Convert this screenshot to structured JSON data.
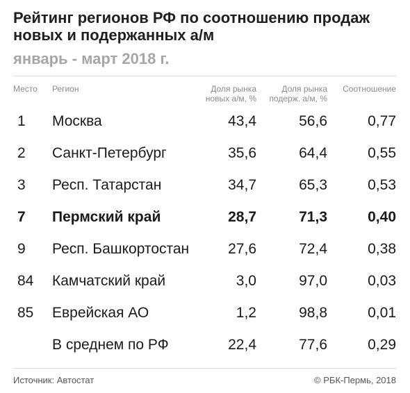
{
  "header": {
    "title": "Рейтинг регионов РФ по соотношению продаж новых и подержанных а/м",
    "subtitle": "январь - март 2018 г."
  },
  "chart_data": {
    "type": "table",
    "columns": [
      "Место",
      "Регион",
      "Доля рынка новых а/м, %",
      "Доля рынка подерж. а/м, %",
      "Соотношение"
    ],
    "header_lines": {
      "new": [
        "Доля рынка",
        "новых а/м, %"
      ],
      "used": [
        "Доля рынка",
        "подерж. а/м, %"
      ]
    },
    "rows": [
      {
        "rank": "1",
        "region": "Москва",
        "new": "43,4",
        "used": "56,6",
        "ratio": "0,77",
        "highlight": false
      },
      {
        "rank": "2",
        "region": "Санкт-Петербург",
        "new": "35,6",
        "used": "64,4",
        "ratio": "0,55",
        "highlight": false
      },
      {
        "rank": "3",
        "region": "Респ. Татарстан",
        "new": "34,7",
        "used": "65,3",
        "ratio": "0,53",
        "highlight": false
      },
      {
        "rank": "7",
        "region": "Пермский край",
        "new": "28,7",
        "used": "71,3",
        "ratio": "0,40",
        "highlight": true
      },
      {
        "rank": "9",
        "region": "Респ. Башкортостан",
        "new": "27,6",
        "used": "72,4",
        "ratio": "0,38",
        "highlight": false
      },
      {
        "rank": "84",
        "region": "Камчатский край",
        "new": "3,0",
        "used": "97,0",
        "ratio": "0,03",
        "highlight": false
      },
      {
        "rank": "85",
        "region": "Еврейская АО",
        "new": "1,2",
        "used": "98,8",
        "ratio": "0,01",
        "highlight": false
      },
      {
        "rank": "",
        "region": "В среднем по РФ",
        "new": "22,4",
        "used": "77,6",
        "ratio": "0,29",
        "highlight": false
      }
    ]
  },
  "footer": {
    "source": "Источник: Автостат",
    "copyright": "© РБК-Пермь, 2018"
  },
  "colors": {
    "text": "#1a1a1a",
    "subtitle": "#a6a6a6",
    "header_text": "#8a8a8a",
    "rule": "#dcdcdc"
  }
}
